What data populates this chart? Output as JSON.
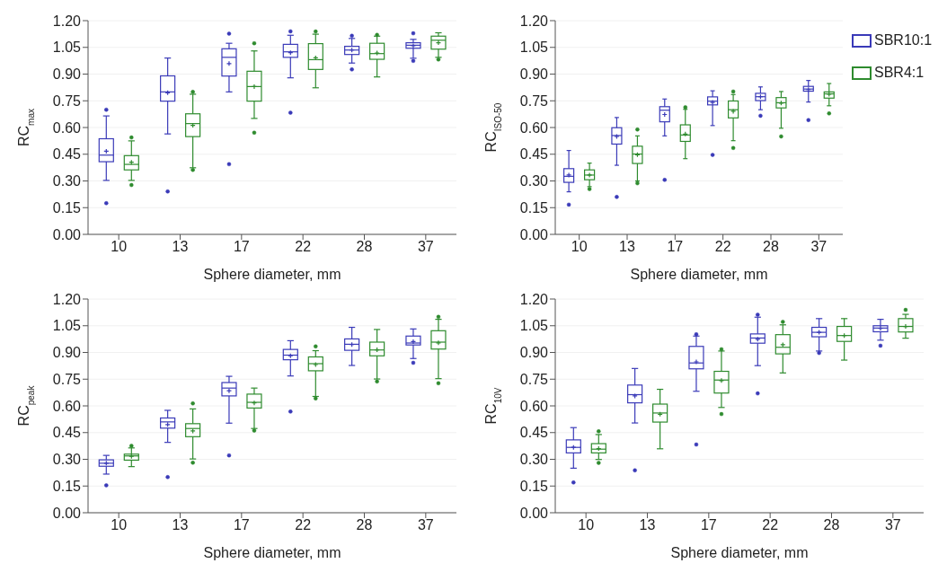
{
  "chart_data": [
    {
      "type": "box",
      "ylabel": "RC$_{max}$",
      "xlabel": "Sphere diameter, mm",
      "categories": [
        "10",
        "13",
        "17",
        "22",
        "28",
        "37"
      ],
      "ylim": [
        0,
        1.2
      ],
      "yticks": [
        {
          "value": 0,
          "label": "0.00"
        },
        {
          "value": 0.15,
          "label": "0.15"
        },
        {
          "value": 0.3,
          "label": "0.30"
        },
        {
          "value": 0.45,
          "label": "0.45"
        },
        {
          "value": 0.6,
          "label": "0.60"
        },
        {
          "value": 0.75,
          "label": "0.75"
        },
        {
          "value": 0.9,
          "label": "0.90"
        },
        {
          "value": 1.05,
          "label": "1.05"
        },
        {
          "value": 1.2,
          "label": "1.20"
        }
      ],
      "grid": "y",
      "series": [
        {
          "color": "#3a3ab8",
          "boxes": [
            {
              "low": 0.303,
              "q1": 0.408,
              "median": 0.445,
              "q3": 0.537,
              "high": 0.665,
              "mean": 0.467,
              "outliers": [
                0.175,
                0.7
              ]
            },
            {
              "low": 0.564,
              "q1": 0.748,
              "median": 0.8,
              "q3": 0.89,
              "high": 0.99,
              "mean": 0.795,
              "outliers": [
                0.241
              ]
            },
            {
              "low": 0.8,
              "q1": 0.889,
              "median": 0.994,
              "q3": 1.042,
              "high": 1.073,
              "mean": 0.959,
              "outliers": [
                0.394,
                1.127
              ]
            },
            {
              "low": 0.879,
              "q1": 0.994,
              "median": 1.025,
              "q3": 1.067,
              "high": 1.118,
              "mean": 1.02,
              "outliers": [
                0.683,
                1.14
              ]
            },
            {
              "low": 0.962,
              "q1": 1.01,
              "median": 1.035,
              "q3": 1.056,
              "high": 1.1,
              "mean": 1.035,
              "outliers": [
                0.926,
                1.115
              ]
            },
            {
              "low": 0.989,
              "q1": 1.045,
              "median": 1.062,
              "q3": 1.076,
              "high": 1.095,
              "mean": 1.059,
              "outliers": [
                0.974,
                1.129
              ]
            }
          ]
        },
        {
          "color": "#2e8b2e",
          "boxes": [
            {
              "low": 0.303,
              "q1": 0.362,
              "median": 0.393,
              "q3": 0.442,
              "high": 0.525,
              "mean": 0.405,
              "outliers": [
                0.277,
                0.544
              ]
            },
            {
              "low": 0.374,
              "q1": 0.549,
              "median": 0.622,
              "q3": 0.677,
              "high": 0.787,
              "mean": 0.612,
              "outliers": [
                0.362,
                0.8
              ]
            },
            {
              "low": 0.651,
              "q1": 0.748,
              "median": 0.83,
              "q3": 0.916,
              "high": 1.03,
              "mean": 0.83,
              "outliers": [
                0.571,
                1.073
              ]
            },
            {
              "low": 0.823,
              "q1": 0.926,
              "median": 0.981,
              "q3": 1.071,
              "high": 1.124,
              "mean": 0.991,
              "outliers": [
                1.139
              ]
            },
            {
              "low": 0.884,
              "q1": 0.983,
              "median": 1.015,
              "q3": 1.073,
              "high": 1.113,
              "mean": 1.018,
              "outliers": [
                1.12
              ]
            },
            {
              "low": 0.994,
              "q1": 1.04,
              "median": 1.09,
              "q3": 1.113,
              "high": 1.132,
              "mean": 1.076,
              "outliers": [
                0.982
              ]
            }
          ]
        }
      ]
    },
    {
      "type": "box",
      "ylabel": "RC$_{ISO-50}$",
      "xlabel": "Sphere diameter, mm",
      "categories": [
        "10",
        "13",
        "17",
        "22",
        "28",
        "37"
      ],
      "ylim": [
        0,
        1.2
      ],
      "yticks": [
        {
          "value": 0,
          "label": "0.00"
        },
        {
          "value": 0.15,
          "label": "0.15"
        },
        {
          "value": 0.3,
          "label": "0.30"
        },
        {
          "value": 0.45,
          "label": "0.45"
        },
        {
          "value": 0.6,
          "label": "0.60"
        },
        {
          "value": 0.75,
          "label": "0.75"
        },
        {
          "value": 0.9,
          "label": "0.90"
        },
        {
          "value": 1.05,
          "label": "1.05"
        },
        {
          "value": 1.2,
          "label": "1.20"
        }
      ],
      "grid": "y",
      "legend": "top right",
      "series": [
        {
          "name": "SBR10:1",
          "color": "#3a3ab8",
          "boxes": [
            {
              "low": 0.239,
              "q1": 0.292,
              "median": 0.326,
              "q3": 0.369,
              "high": 0.471,
              "mean": 0.333,
              "outliers": [
                0.167
              ]
            },
            {
              "low": 0.388,
              "q1": 0.507,
              "median": 0.555,
              "q3": 0.599,
              "high": 0.656,
              "mean": 0.55,
              "outliers": [
                0.21
              ]
            },
            {
              "low": 0.553,
              "q1": 0.632,
              "median": 0.697,
              "q3": 0.717,
              "high": 0.76,
              "mean": 0.673,
              "outliers": [
                0.306
              ]
            },
            {
              "low": 0.611,
              "q1": 0.727,
              "median": 0.748,
              "q3": 0.772,
              "high": 0.806,
              "mean": 0.741,
              "outliers": [
                0.446
              ]
            },
            {
              "low": 0.7,
              "q1": 0.751,
              "median": 0.773,
              "q3": 0.792,
              "high": 0.828,
              "mean": 0.773,
              "outliers": [
                0.666
              ]
            },
            {
              "low": 0.743,
              "q1": 0.804,
              "median": 0.816,
              "q3": 0.831,
              "high": 0.864,
              "mean": 0.813,
              "outliers": [
                0.642
              ]
            }
          ]
        },
        {
          "name": "SBR4:1",
          "color": "#2e8b2e",
          "boxes": [
            {
              "low": 0.268,
              "q1": 0.307,
              "median": 0.333,
              "q3": 0.362,
              "high": 0.4,
              "mean": 0.333,
              "outliers": [
                0.254
              ]
            },
            {
              "low": 0.3,
              "q1": 0.398,
              "median": 0.451,
              "q3": 0.495,
              "high": 0.553,
              "mean": 0.447,
              "outliers": [
                0.287,
                0.589
              ]
            },
            {
              "low": 0.425,
              "q1": 0.522,
              "median": 0.558,
              "q3": 0.615,
              "high": 0.702,
              "mean": 0.563,
              "outliers": [
                0.714
              ]
            },
            {
              "low": 0.526,
              "q1": 0.654,
              "median": 0.7,
              "q3": 0.749,
              "high": 0.785,
              "mean": 0.691,
              "outliers": [
                0.485,
                0.802
              ]
            },
            {
              "low": 0.596,
              "q1": 0.71,
              "median": 0.739,
              "q3": 0.768,
              "high": 0.802,
              "mean": 0.737,
              "outliers": [
                0.55
              ]
            },
            {
              "low": 0.722,
              "q1": 0.765,
              "median": 0.789,
              "q3": 0.8,
              "high": 0.847,
              "mean": 0.787,
              "outliers": [
                0.679
              ]
            }
          ]
        }
      ]
    },
    {
      "type": "box",
      "ylabel": "RC$_{peak}$",
      "xlabel": "Sphere diameter, mm",
      "categories": [
        "10",
        "13",
        "17",
        "22",
        "28",
        "37"
      ],
      "ylim": [
        0,
        1.2
      ],
      "yticks": [
        {
          "value": 0,
          "label": "0.00"
        },
        {
          "value": 0.15,
          "label": "0.15"
        },
        {
          "value": 0.3,
          "label": "0.30"
        },
        {
          "value": 0.45,
          "label": "0.45"
        },
        {
          "value": 0.6,
          "label": "0.60"
        },
        {
          "value": 0.75,
          "label": "0.75"
        },
        {
          "value": 0.9,
          "label": "0.90"
        },
        {
          "value": 1.05,
          "label": "1.05"
        },
        {
          "value": 1.2,
          "label": "1.20"
        }
      ],
      "grid": "y",
      "series": [
        {
          "color": "#3a3ab8",
          "boxes": [
            {
              "low": 0.217,
              "q1": 0.261,
              "median": 0.278,
              "q3": 0.297,
              "high": 0.322,
              "mean": 0.278,
              "outliers": [
                0.154
              ]
            },
            {
              "low": 0.395,
              "q1": 0.475,
              "median": 0.51,
              "q3": 0.532,
              "high": 0.575,
              "mean": 0.495,
              "outliers": [
                0.2
              ]
            },
            {
              "low": 0.503,
              "q1": 0.656,
              "median": 0.7,
              "q3": 0.731,
              "high": 0.766,
              "mean": 0.685,
              "outliers": [
                0.322
              ]
            },
            {
              "low": 0.768,
              "q1": 0.859,
              "median": 0.885,
              "q3": 0.917,
              "high": 0.966,
              "mean": 0.881,
              "outliers": [
                0.568
              ]
            },
            {
              "low": 0.827,
              "q1": 0.912,
              "median": 0.946,
              "q3": 0.976,
              "high": 1.041,
              "mean": 0.944
            },
            {
              "low": 0.866,
              "q1": 0.942,
              "median": 0.953,
              "q3": 0.992,
              "high": 1.032,
              "mean": 0.961,
              "outliers": [
                0.842
              ]
            }
          ]
        },
        {
          "color": "#2e8b2e",
          "boxes": [
            {
              "low": 0.259,
              "q1": 0.295,
              "median": 0.319,
              "q3": 0.329,
              "high": 0.364,
              "mean": 0.317,
              "outliers": [
                0.376
              ]
            },
            {
              "low": 0.302,
              "q1": 0.427,
              "median": 0.473,
              "q3": 0.5,
              "high": 0.583,
              "mean": 0.459,
              "outliers": [
                0.281,
                0.614
              ]
            },
            {
              "low": 0.473,
              "q1": 0.588,
              "median": 0.62,
              "q3": 0.666,
              "high": 0.7,
              "mean": 0.617,
              "outliers": [
                0.461
              ]
            },
            {
              "low": 0.653,
              "q1": 0.797,
              "median": 0.837,
              "q3": 0.875,
              "high": 0.91,
              "mean": 0.832,
              "outliers": [
                0.642,
                0.934
              ]
            },
            {
              "low": 0.751,
              "q1": 0.881,
              "median": 0.914,
              "q3": 0.958,
              "high": 1.029,
              "mean": 0.915,
              "outliers": [
                0.737
              ]
            },
            {
              "low": 0.753,
              "q1": 0.919,
              "median": 0.958,
              "q3": 1.022,
              "high": 1.086,
              "mean": 0.954,
              "outliers": [
                0.727,
                1.1
              ]
            }
          ]
        }
      ]
    },
    {
      "type": "box",
      "ylabel": "RC$_{10V}$",
      "xlabel": "Sphere diameter, mm",
      "categories": [
        "10",
        "13",
        "17",
        "22",
        "28",
        "37"
      ],
      "ylim": [
        0,
        1.2
      ],
      "yticks": [
        {
          "value": 0,
          "label": "0.00"
        },
        {
          "value": 0.15,
          "label": "0.15"
        },
        {
          "value": 0.3,
          "label": "0.30"
        },
        {
          "value": 0.45,
          "label": "0.45"
        },
        {
          "value": 0.6,
          "label": "0.60"
        },
        {
          "value": 0.75,
          "label": "0.75"
        },
        {
          "value": 0.9,
          "label": "0.90"
        },
        {
          "value": 1.05,
          "label": "1.05"
        },
        {
          "value": 1.2,
          "label": "1.20"
        }
      ],
      "grid": "y",
      "series": [
        {
          "color": "#3a3ab8",
          "boxes": [
            {
              "low": 0.25,
              "q1": 0.336,
              "median": 0.367,
              "q3": 0.409,
              "high": 0.478,
              "mean": 0.367,
              "outliers": [
                0.17
              ]
            },
            {
              "low": 0.504,
              "q1": 0.617,
              "median": 0.663,
              "q3": 0.717,
              "high": 0.81,
              "mean": 0.656,
              "outliers": [
                0.238
              ]
            },
            {
              "low": 0.682,
              "q1": 0.808,
              "median": 0.841,
              "q3": 0.934,
              "high": 0.992,
              "mean": 0.847,
              "outliers": [
                0.383,
                1.002
              ]
            },
            {
              "low": 0.826,
              "q1": 0.952,
              "median": 0.981,
              "q3": 1.004,
              "high": 1.098,
              "mean": 0.974,
              "outliers": [
                0.67,
                1.112
              ]
            },
            {
              "low": 0.908,
              "q1": 0.988,
              "median": 1.013,
              "q3": 1.041,
              "high": 1.09,
              "mean": 1.013,
              "outliers": [
                0.897
              ]
            },
            {
              "low": 0.969,
              "q1": 1.016,
              "median": 1.037,
              "q3": 1.05,
              "high": 1.086,
              "mean": 1.036,
              "outliers": [
                0.938
              ]
            }
          ]
        },
        {
          "color": "#2e8b2e",
          "boxes": [
            {
              "low": 0.299,
              "q1": 0.336,
              "median": 0.357,
              "q3": 0.388,
              "high": 0.439,
              "mean": 0.36,
              "outliers": [
                0.28,
                0.457
              ]
            },
            {
              "low": 0.359,
              "q1": 0.509,
              "median": 0.56,
              "q3": 0.61,
              "high": 0.693,
              "mean": 0.553
            },
            {
              "low": 0.591,
              "q1": 0.672,
              "median": 0.745,
              "q3": 0.794,
              "high": 0.908,
              "mean": 0.742,
              "outliers": [
                0.554,
                0.918
              ]
            },
            {
              "low": 0.785,
              "q1": 0.892,
              "median": 0.929,
              "q3": 1.0,
              "high": 1.055,
              "mean": 0.943,
              "outliers": [
                1.072
              ]
            },
            {
              "low": 0.857,
              "q1": 0.962,
              "median": 0.995,
              "q3": 1.046,
              "high": 1.09,
              "mean": 0.995
            },
            {
              "low": 0.98,
              "q1": 1.015,
              "median": 1.046,
              "q3": 1.09,
              "high": 1.114,
              "mean": 1.046,
              "outliers": [
                1.139
              ]
            }
          ]
        }
      ]
    }
  ]
}
